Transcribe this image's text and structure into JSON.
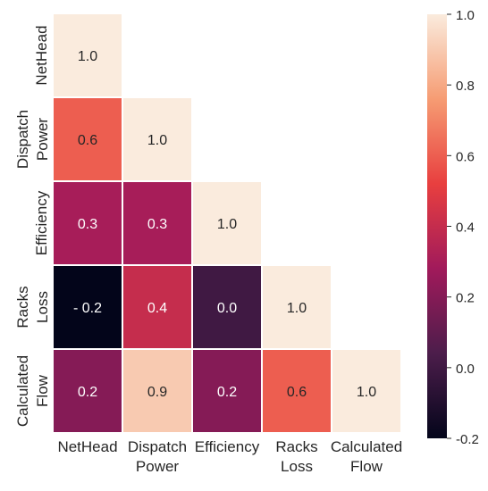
{
  "chart_data": {
    "type": "heatmap",
    "title": "",
    "xlabel": "",
    "ylabel": "",
    "x_labels": [
      [
        "NetHead"
      ],
      [
        "Dispatch",
        "Power"
      ],
      [
        "Efficiency"
      ],
      [
        "Racks",
        "Loss"
      ],
      [
        "Calculated",
        "Flow"
      ]
    ],
    "y_labels": [
      [
        "NetHead"
      ],
      [
        "Dispatch",
        "Power"
      ],
      [
        "Efficiency"
      ],
      [
        "Racks",
        "Loss"
      ],
      [
        "Calculated",
        "Flow"
      ]
    ],
    "matrix": [
      [
        1.0,
        null,
        null,
        null,
        null
      ],
      [
        0.6,
        1.0,
        null,
        null,
        null
      ],
      [
        0.3,
        0.3,
        1.0,
        null,
        null
      ],
      [
        -0.2,
        0.4,
        0.0,
        1.0,
        null
      ],
      [
        0.2,
        0.9,
        0.2,
        0.6,
        1.0
      ]
    ],
    "cell_labels": [
      [
        "1.0",
        null,
        null,
        null,
        null
      ],
      [
        "0.6",
        "1.0",
        null,
        null,
        null
      ],
      [
        "0.3",
        "0.3",
        "1.0",
        null,
        null
      ],
      [
        "- 0.2",
        "0.4",
        "0.0",
        "1.0",
        null
      ],
      [
        "0.2",
        "0.9",
        "0.2",
        "0.6",
        "1.0"
      ]
    ],
    "colorbar": {
      "range": [
        -0.2,
        1.0
      ],
      "ticks": [
        -0.2,
        0.0,
        0.2,
        0.4,
        0.6,
        0.8,
        1.0
      ],
      "tick_labels": [
        "-0.2",
        "0.0",
        "0.2",
        "0.4",
        "0.6",
        "0.8",
        "1.0"
      ]
    },
    "colormap": [
      "#03051a",
      "#4c1d4b",
      "#a11a5b",
      "#e83f3f",
      "#f69c73",
      "#faebdd"
    ],
    "mask": "upper-triangle"
  }
}
